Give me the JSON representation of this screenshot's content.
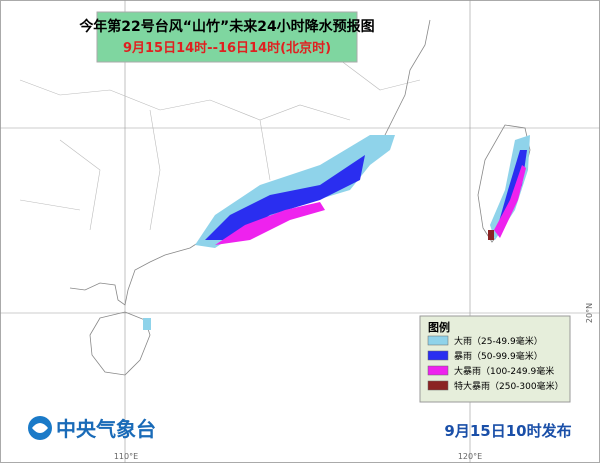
{
  "header": {
    "title": "今年第22号台风“山竹”未来24小时降水预报图",
    "subtitle": "9月15日14时--16日14时(北京时)"
  },
  "legend": {
    "title": "图例",
    "items": [
      {
        "label": "大雨（25-49.9毫米）",
        "color": "#8fd3ea"
      },
      {
        "label": "暴雨（50-99.9毫米）",
        "color": "#2a2ef0"
      },
      {
        "label": "大暴雨（100-249.9毫米",
        "color": "#ee22ee"
      },
      {
        "label": "特大暴雨（250-300毫米）",
        "color": "#8b2323"
      }
    ]
  },
  "graticule": {
    "lon_labels": [
      "110°E",
      "120°E"
    ],
    "lat_label": "20°N"
  },
  "footer": {
    "agency": "中央气象台",
    "issued": "9月15日10时发布"
  }
}
